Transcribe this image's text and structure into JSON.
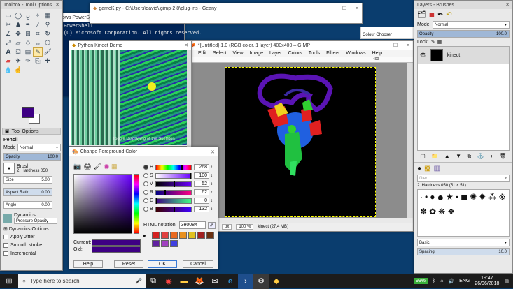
{
  "toolbox": {
    "title": "Toolbox - Tool Options",
    "tool_options_tab": "Tool Options",
    "tool_name": "Pencil",
    "mode_label": "Mode",
    "mode_value": "Normal",
    "opacity_label": "Opacity",
    "opacity_value": "100.0",
    "brush_label": "Brush",
    "brush_value": "2. Hardness 050",
    "size_label": "Size",
    "size_value": "5.00",
    "aspect_label": "Aspect Ratio",
    "aspect_value": "0.00",
    "angle_label": "Angle",
    "angle_value": "0.00",
    "dynamics_label": "Dynamics",
    "dynamics_value": "Pressure Opacity",
    "dynamics_options": "Dynamics Options",
    "apply_jitter": "Apply Jitter",
    "smooth_stroke": "Smooth stroke",
    "incremental": "Incremental",
    "fg_color": "#3e0084"
  },
  "powershell": {
    "title": "ows PowerShell (x86)",
    "line1": "PowerShell",
    "line2": "(C) Microsoft Corporation. All rights reserved."
  },
  "geany": {
    "title": "gameK.py - C:\\Users\\david\\.gimp-2.8\\plug-ins - Geany"
  },
  "kinect_demo": {
    "title": "Python Kinect Demo",
    "overlay_text": "Toggle Displaying of the Skeleton"
  },
  "gimp_image": {
    "title": "*[Untitled]-1.0 (RGB color, 1 layer) 400x400 – GIMP",
    "menu": [
      "Edit",
      "Select",
      "View",
      "Image",
      "Layer",
      "Colors",
      "Tools",
      "Filters",
      "Windows",
      "Help"
    ],
    "ruler_mark": "400",
    "units": "px",
    "zoom": "100 %",
    "status": "kinect (27.4 MB)",
    "colour_chooser": "Colour Chooser"
  },
  "fg_dialog": {
    "title": "Change Foreground Color",
    "channels": [
      {
        "label": "H",
        "value": "268",
        "fill": 0.74
      },
      {
        "label": "S",
        "value": "100",
        "fill": 1.0
      },
      {
        "label": "V",
        "value": "52",
        "fill": 0.52
      },
      {
        "label": "R",
        "value": "62",
        "fill": 0.24
      },
      {
        "label": "G",
        "value": "0",
        "fill": 0.0
      },
      {
        "label": "B",
        "value": "132",
        "fill": 0.52
      }
    ],
    "html_label": "HTML notation:",
    "html_value": "3e0084",
    "current_label": "Current:",
    "old_label": "Old:",
    "help": "Help",
    "reset": "Reset",
    "ok": "OK",
    "cancel": "Cancel",
    "swatches": [
      "#d42020",
      "#e04040",
      "#e86820",
      "#e89020",
      "#e0c020",
      "#a02020",
      "#6a3010",
      "#6020a0",
      "#a040c0",
      "#4040e0"
    ]
  },
  "layers": {
    "title": "Layers - Brushes",
    "mode_label": "Mode",
    "mode_value": "Normal",
    "opacity_label": "Opacity",
    "opacity_value": "100.0",
    "lock_label": "Lock:",
    "layer_name": "kinect",
    "filter_placeholder": "filter",
    "brush_name": "2. Hardness 050 (51 × 51)",
    "preset": "Basic,",
    "spacing_label": "Spacing",
    "spacing_value": "10.0"
  },
  "taskbar": {
    "search": "Type here to search",
    "battery": "99%",
    "lang": "ENG",
    "time": "19:47",
    "date": "26/06/2018"
  }
}
